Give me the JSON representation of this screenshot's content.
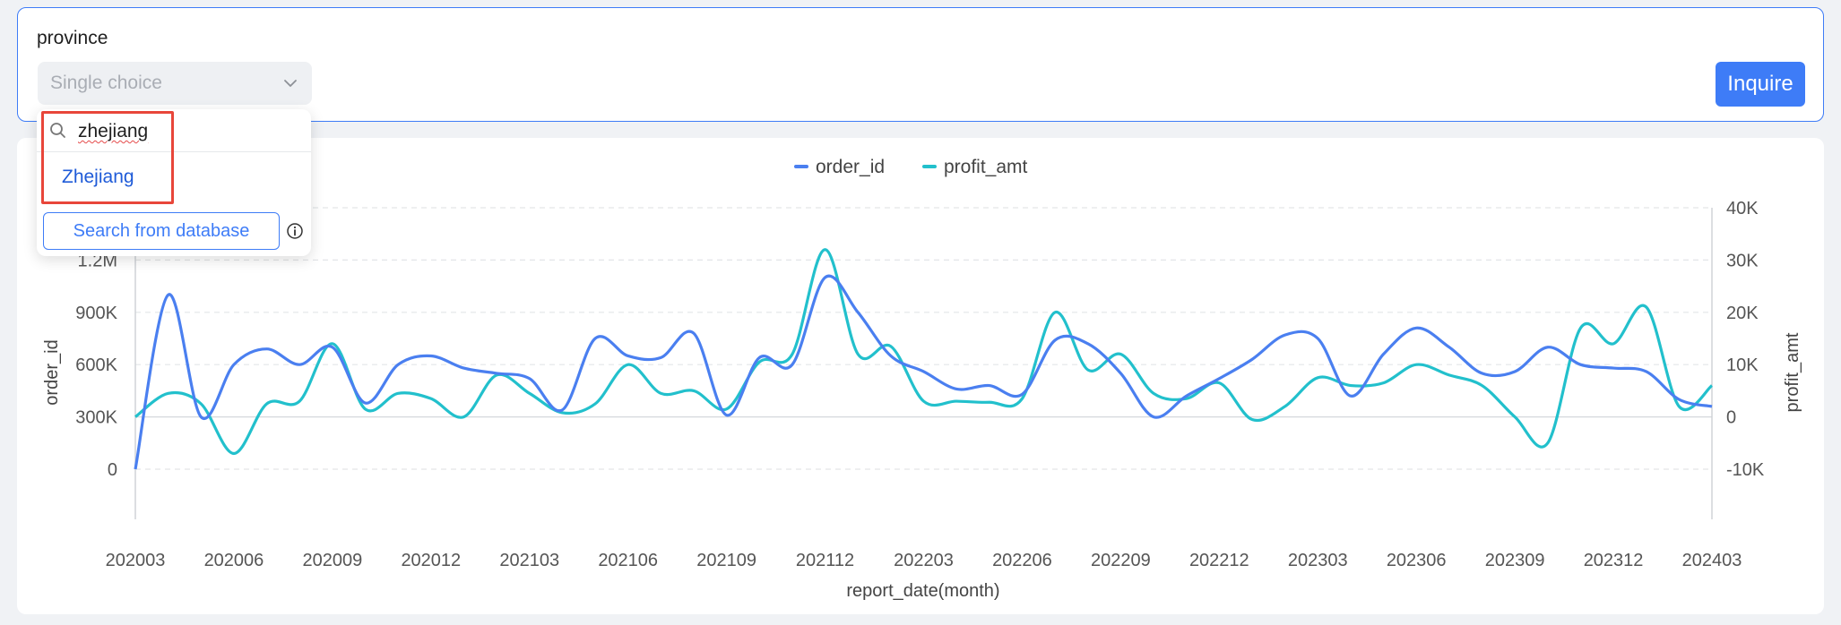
{
  "filter": {
    "label": "province",
    "placeholder": "Single choice",
    "inquire_label": "Inquire"
  },
  "dropdown": {
    "search_value": "zhejiang",
    "options": [
      "Zhejiang"
    ],
    "search_db_label": "Search from database"
  },
  "colors": {
    "accent": "#3e7cf7",
    "series_order_id": "#4a7ff0",
    "series_profit_amt": "#22c0cc",
    "highlight": "#e8463a"
  },
  "chart_data": {
    "type": "line",
    "xlabel": "report_date(month)",
    "ylabel_left": "order_id",
    "ylabel_right": "profit_amt",
    "x_tick_labels": [
      "202003",
      "202006",
      "202009",
      "202012",
      "202103",
      "202106",
      "202109",
      "202112",
      "202203",
      "202206",
      "202209",
      "202212",
      "202303",
      "202306",
      "202309",
      "202312",
      "202403"
    ],
    "y_left_ticks": [
      "0",
      "300K",
      "600K",
      "900K",
      "1.2M"
    ],
    "y_right_ticks": [
      "-10K",
      "0",
      "10K",
      "20K",
      "30K",
      "40K"
    ],
    "y_left_range": [
      0,
      1500000
    ],
    "y_right_range": [
      -10000,
      40000
    ],
    "legend_position": "top-center",
    "grid": true,
    "x": [
      "202003",
      "202004",
      "202005",
      "202006",
      "202007",
      "202008",
      "202009",
      "202010",
      "202011",
      "202012",
      "202101",
      "202102",
      "202103",
      "202104",
      "202105",
      "202106",
      "202107",
      "202108",
      "202109",
      "202110",
      "202111",
      "202112",
      "202201",
      "202202",
      "202203",
      "202204",
      "202205",
      "202206",
      "202207",
      "202208",
      "202209",
      "202210",
      "202211",
      "202212",
      "202301",
      "202302",
      "202303",
      "202304",
      "202305",
      "202306",
      "202307",
      "202308",
      "202309",
      "202310",
      "202311",
      "202312",
      "202401",
      "202402",
      "202403"
    ],
    "series": [
      {
        "name": "order_id",
        "axis": "left",
        "values": [
          0,
          1000000,
          300000,
          600000,
          690000,
          600000,
          700000,
          380000,
          600000,
          650000,
          580000,
          550000,
          520000,
          340000,
          750000,
          650000,
          640000,
          780000,
          310000,
          640000,
          600000,
          1100000,
          900000,
          650000,
          560000,
          460000,
          480000,
          430000,
          740000,
          720000,
          550000,
          300000,
          420000,
          520000,
          630000,
          770000,
          750000,
          420000,
          660000,
          810000,
          700000,
          550000,
          560000,
          700000,
          600000,
          580000,
          560000,
          400000,
          360000
        ]
      },
      {
        "name": "profit_amt",
        "axis": "right",
        "values": [
          0,
          4500,
          2500,
          -7000,
          2500,
          3000,
          14000,
          1500,
          4500,
          3500,
          0,
          8000,
          4500,
          800,
          2500,
          10000,
          4500,
          5000,
          1500,
          10500,
          12000,
          32000,
          12000,
          13500,
          3000,
          3000,
          2800,
          3500,
          20000,
          9000,
          12000,
          4500,
          3500,
          6500,
          -500,
          2000,
          7500,
          6000,
          6500,
          10000,
          8000,
          6000,
          0,
          -5000,
          17000,
          14000,
          21000,
          2000,
          6000
        ]
      }
    ]
  }
}
